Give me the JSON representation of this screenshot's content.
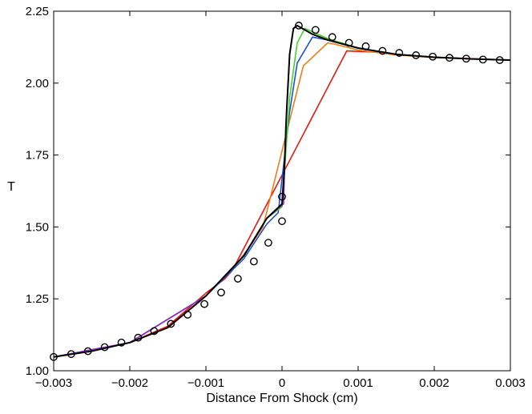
{
  "chart_data": {
    "type": "line",
    "title": "",
    "xlabel": "Distance From Shock (cm)",
    "ylabel": "T",
    "xlim": [
      -0.003,
      0.003
    ],
    "ylim": [
      1.0,
      2.25
    ],
    "xticks": [
      -0.003,
      -0.002,
      -0.001,
      0,
      0.001,
      0.002,
      0.003
    ],
    "xtick_labels": [
      "−0.003",
      "−0.002",
      "−0.001",
      "0",
      "0.001",
      "0.002",
      "0.003"
    ],
    "yticks": [
      1.0,
      1.25,
      1.5,
      1.75,
      2.0,
      2.25
    ],
    "ytick_labels": [
      "1.00",
      "1.25",
      "1.50",
      "1.75",
      "2.00",
      "2.25"
    ],
    "grid": false,
    "legend": "none",
    "series": [
      {
        "name": "red",
        "color": "#e8170f",
        "x": [
          -0.003,
          -0.0025,
          -0.002,
          -0.0015,
          -0.001,
          -0.00075,
          -0.00065,
          0.00085,
          0.0012,
          0.0016,
          0.002,
          0.0025,
          0.003
        ],
        "y": [
          1.048,
          1.07,
          1.098,
          1.155,
          1.27,
          1.32,
          1.35,
          2.112,
          2.108,
          2.097,
          2.09,
          2.085,
          2.08
        ]
      },
      {
        "name": "orange",
        "color": "#ee7e1a",
        "x": [
          -0.003,
          -0.0025,
          -0.002,
          -0.0015,
          -0.001,
          -0.0006,
          -0.0004,
          -0.00025,
          0.00028,
          0.0006,
          0.0007,
          0.001,
          0.0015,
          0.002,
          0.0025,
          0.003
        ],
        "y": [
          1.048,
          1.07,
          1.098,
          1.15,
          1.26,
          1.37,
          1.44,
          1.5,
          2.06,
          2.14,
          2.135,
          2.115,
          2.098,
          2.089,
          2.084,
          2.08
        ]
      },
      {
        "name": "blue",
        "color": "#1f4fd6",
        "x": [
          -0.003,
          -0.002,
          -0.001,
          -0.0005,
          -0.0002,
          -5e-05,
          0.0001,
          0.0002,
          0.0004,
          0.0006,
          0.001,
          0.0015,
          0.002,
          0.0025,
          0.003
        ],
        "y": [
          1.048,
          1.098,
          1.26,
          1.39,
          1.51,
          1.55,
          1.9,
          2.07,
          2.16,
          2.15,
          2.122,
          2.1,
          2.09,
          2.084,
          2.08
        ]
      },
      {
        "name": "green",
        "color": "#41d62a",
        "x": [
          -0.003,
          -0.002,
          -0.001,
          -0.0005,
          -0.0002,
          0.0,
          0.0001,
          0.0002,
          0.0003,
          0.0006,
          0.001,
          0.0015,
          0.002,
          0.0025,
          0.003
        ],
        "y": [
          1.048,
          1.098,
          1.26,
          1.4,
          1.53,
          1.57,
          1.95,
          2.14,
          2.19,
          2.155,
          2.122,
          2.1,
          2.09,
          2.084,
          2.08
        ]
      },
      {
        "name": "purple",
        "color": "#9b1fc9",
        "x": [
          -0.003,
          -0.002,
          -0.001,
          -0.0005,
          -0.0002,
          2e-05,
          5e-05,
          0.0001,
          0.00015,
          0.0002,
          0.0004,
          0.0006,
          0.001,
          0.0015,
          0.002,
          0.0025,
          0.003
        ],
        "y": [
          1.048,
          1.098,
          1.26,
          1.4,
          1.53,
          1.58,
          1.85,
          2.1,
          2.19,
          2.2,
          2.17,
          2.15,
          2.122,
          2.1,
          2.09,
          2.084,
          2.08
        ]
      },
      {
        "name": "black",
        "color": "#000000",
        "x": [
          -0.003,
          -0.0025,
          -0.002,
          -0.0015,
          -0.001,
          -0.0005,
          -0.0002,
          0.0,
          3e-05,
          6e-05,
          0.0001,
          0.00015,
          0.0002,
          0.0004,
          0.0006,
          0.001,
          0.0015,
          0.002,
          0.0025,
          0.003
        ],
        "y": [
          1.048,
          1.068,
          1.098,
          1.15,
          1.26,
          1.4,
          1.53,
          1.58,
          1.7,
          1.9,
          2.1,
          2.19,
          2.2,
          2.17,
          2.15,
          2.122,
          2.1,
          2.09,
          2.084,
          2.08
        ]
      }
    ],
    "markers": {
      "name": "circles",
      "style": "open-circle",
      "color": "#000000",
      "x": [
        -0.003,
        -0.00277,
        -0.00255,
        -0.00233,
        -0.00211,
        -0.00189,
        -0.00168,
        -0.00146,
        -0.00124,
        -0.00102,
        -0.0008,
        -0.00058,
        -0.00037,
        -0.00018,
        0.0,
        0.0,
        0.00022,
        0.00044,
        0.00066,
        0.00088,
        0.0011,
        0.00132,
        0.00154,
        0.00176,
        0.00198,
        0.0022,
        0.00242,
        0.00264,
        0.00286
      ],
      "y": [
        1.048,
        1.058,
        1.068,
        1.082,
        1.098,
        1.115,
        1.138,
        1.163,
        1.195,
        1.232,
        1.272,
        1.32,
        1.38,
        1.445,
        1.52,
        1.605,
        2.2,
        2.185,
        2.16,
        2.14,
        2.128,
        2.112,
        2.105,
        2.097,
        2.092,
        2.088,
        2.085,
        2.082,
        2.08
      ]
    }
  }
}
